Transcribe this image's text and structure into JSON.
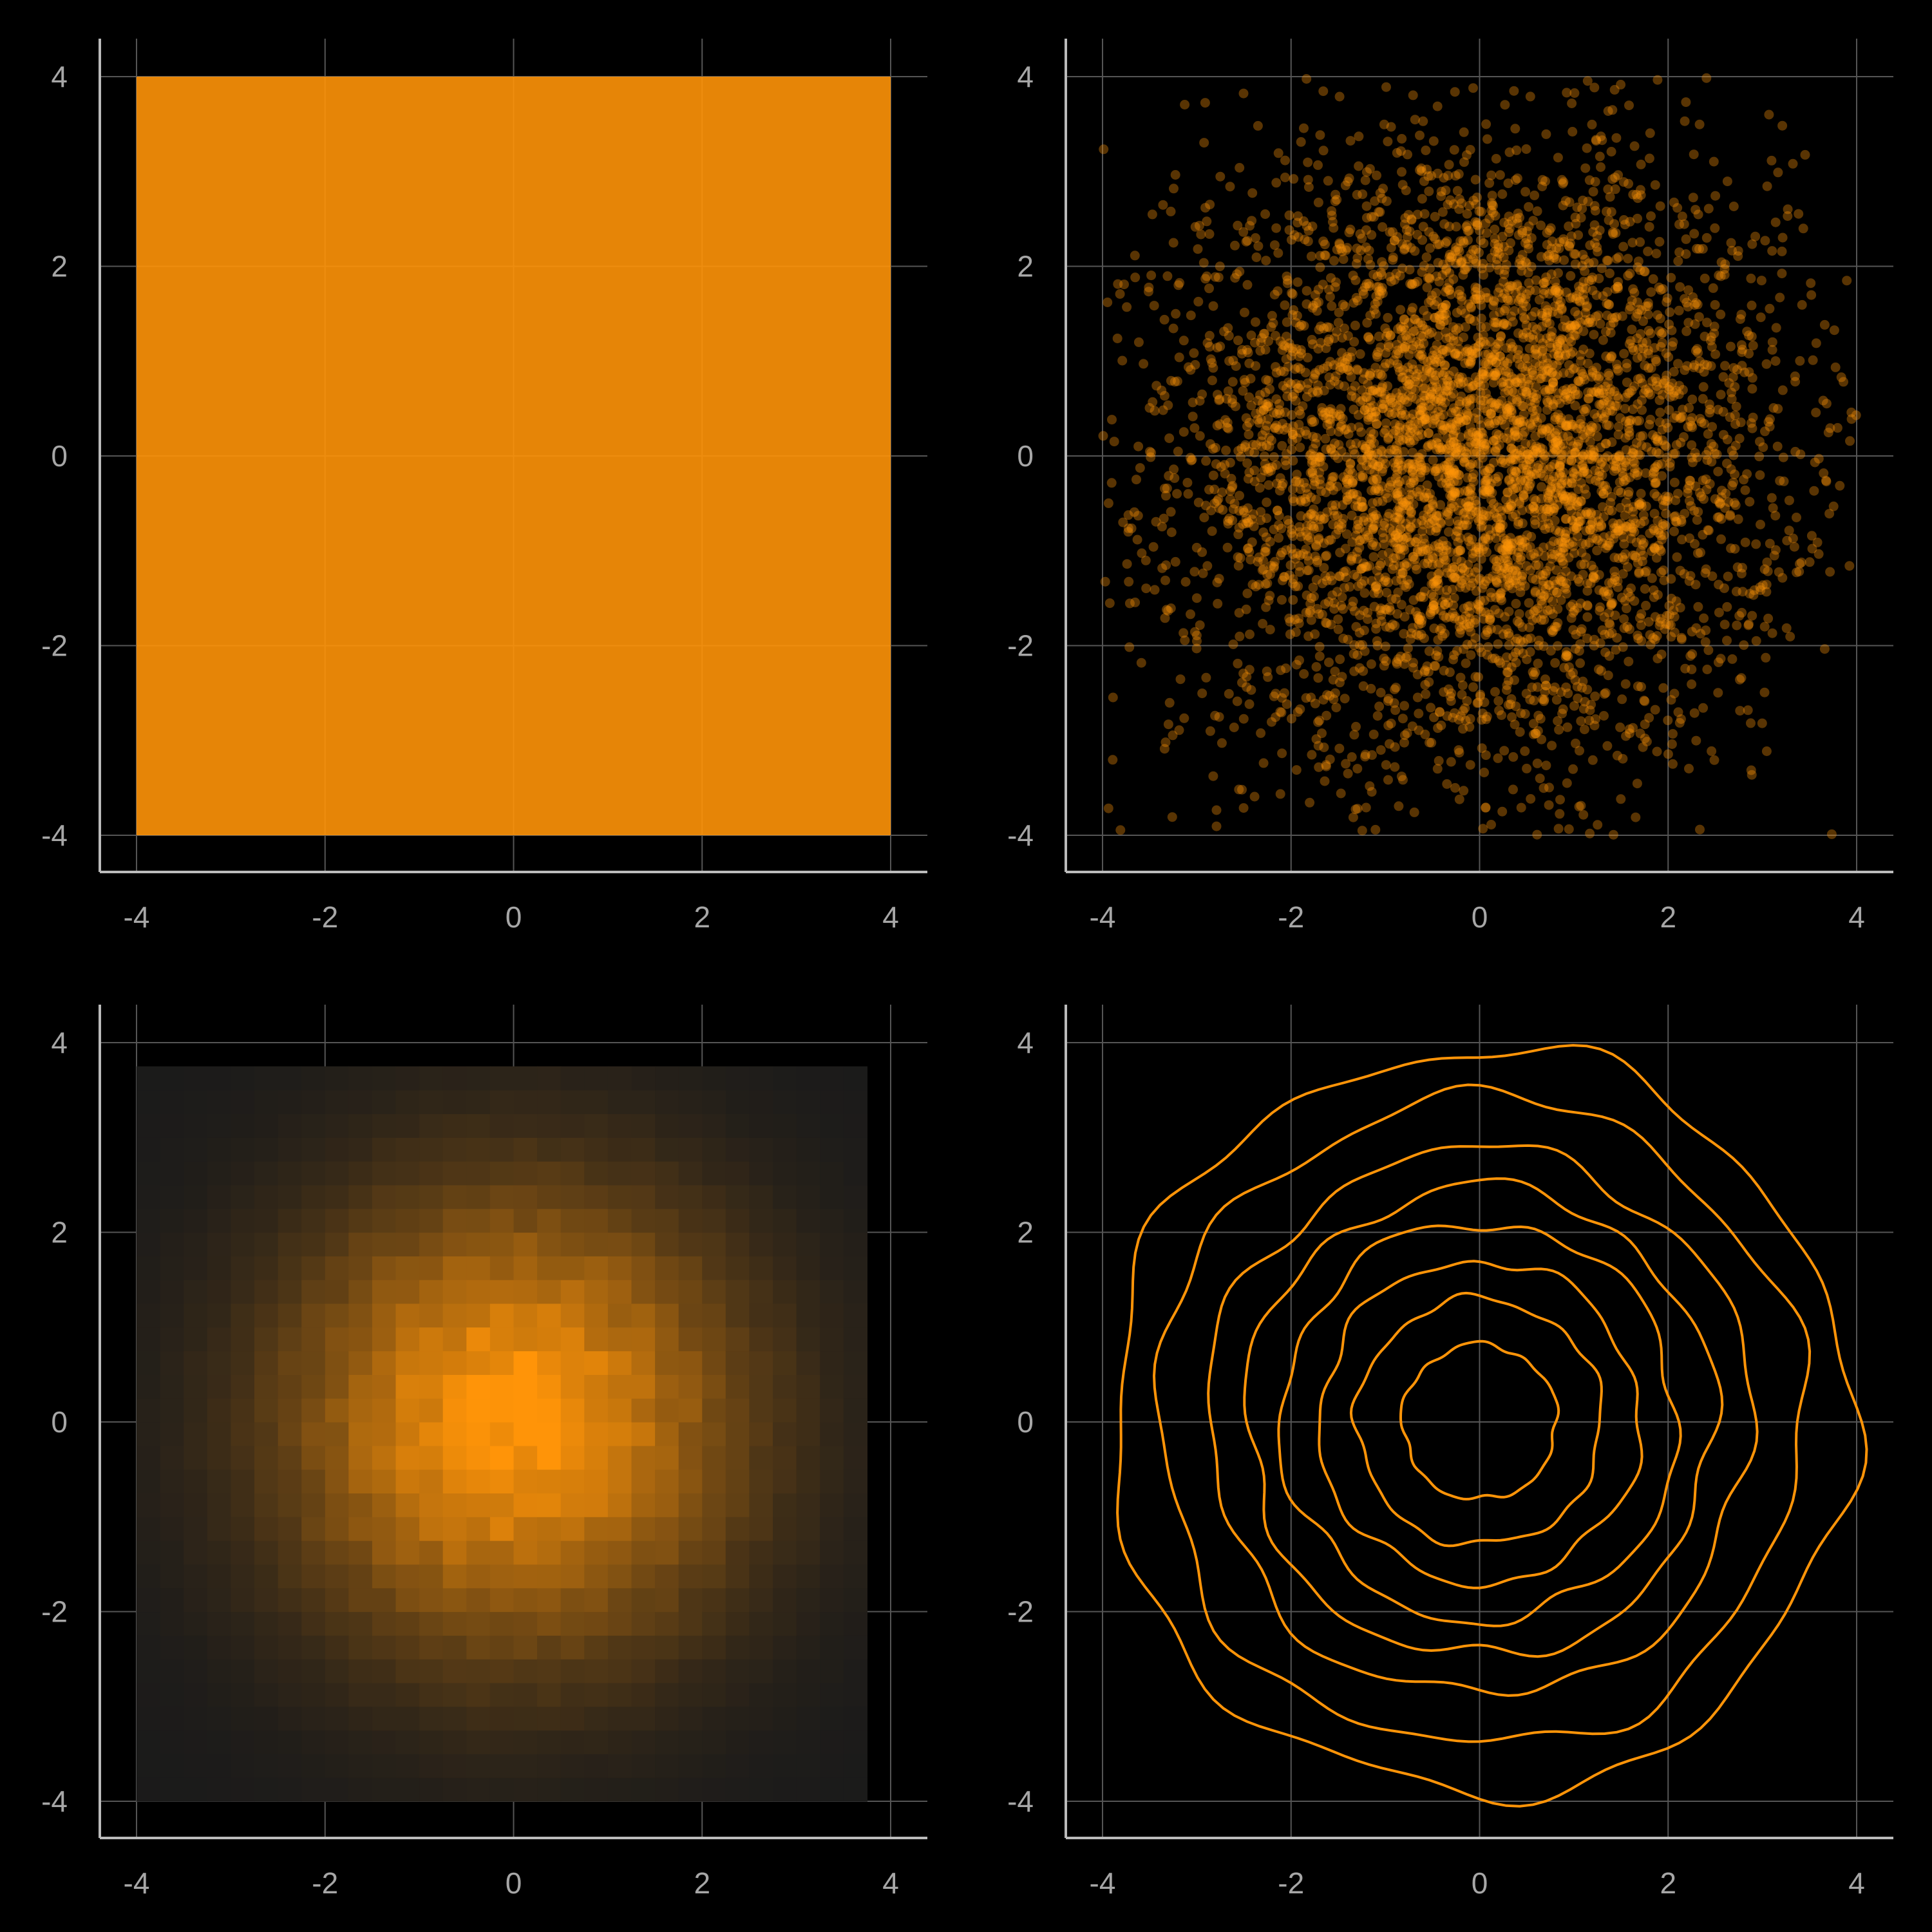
{
  "figure": {
    "background": "#000000",
    "accent": "#ff9408",
    "grid_color": "#555555",
    "axis_color": "#bbbbbb",
    "tick_label_color": "#a6a6a6"
  },
  "chart_data": [
    {
      "panel": "top-left",
      "type": "scatter",
      "xlim": [
        -4.2,
        4.2
      ],
      "ylim": [
        -4.2,
        4.2
      ],
      "xticks": [
        -4,
        -2,
        0,
        2,
        4
      ],
      "yticks": [
        -4,
        -2,
        0,
        2,
        4
      ],
      "grid": true,
      "series": [
        {
          "kind": "dense-uniform-points",
          "x_range": [
            -4,
            4
          ],
          "y_range": [
            -4,
            4
          ],
          "color": "#ff9408",
          "opacity": 0.9
        }
      ]
    },
    {
      "panel": "top-right",
      "type": "scatter",
      "xlim": [
        -4.2,
        4.2
      ],
      "ylim": [
        -4.2,
        4.2
      ],
      "xticks": [
        -4,
        -2,
        0,
        2,
        4
      ],
      "yticks": [
        -4,
        -2,
        0,
        2,
        4
      ],
      "grid": true,
      "series": [
        {
          "kind": "points",
          "distribution": "normal",
          "mean": [
            0,
            0
          ],
          "sd": [
            1.6,
            1.6
          ],
          "approx_count": 5000,
          "clip": [
            -4,
            4
          ],
          "color": "#ff9408",
          "opacity": 0.35
        }
      ]
    },
    {
      "panel": "bottom-left",
      "type": "heatmap",
      "xlim": [
        -4.2,
        4.2
      ],
      "ylim": [
        -4.2,
        4.2
      ],
      "xticks": [
        -4,
        -2,
        0,
        2,
        4
      ],
      "yticks": [
        -4,
        -2,
        0,
        2,
        4
      ],
      "grid": true,
      "x_extent": [
        -4,
        3.75
      ],
      "y_extent": [
        -4,
        3.75
      ],
      "bins": 31,
      "density": "gaussian",
      "mean": [
        0,
        0
      ],
      "sd": 1.6,
      "color_low": "#1a1a1a",
      "color_high": "#ff9408"
    },
    {
      "panel": "bottom-right",
      "type": "line",
      "subtype": "contour",
      "xlim": [
        -4.2,
        4.2
      ],
      "ylim": [
        -4.2,
        4.2
      ],
      "xticks": [
        -4,
        -2,
        0,
        2,
        4
      ],
      "yticks": [
        -4,
        -2,
        0,
        2,
        4
      ],
      "grid": true,
      "center": [
        0,
        0
      ],
      "contour_radii": [
        0.82,
        1.3,
        1.7,
        2.1,
        2.48,
        2.88,
        3.42,
        3.92
      ],
      "color": "#ff9408"
    }
  ]
}
